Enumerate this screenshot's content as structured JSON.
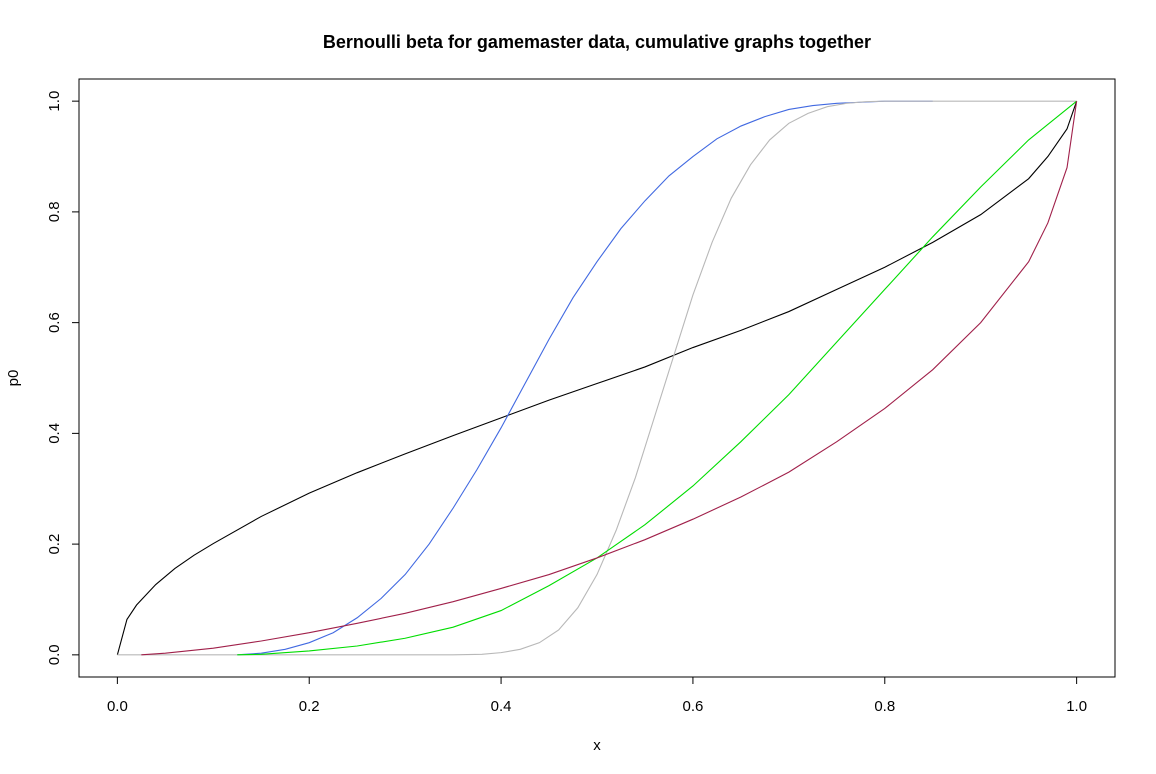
{
  "chart_data": {
    "type": "line",
    "title": "Bernoulli beta for gamemaster data, cumulative graphs together",
    "xlabel": "x",
    "ylabel": "p0",
    "xlim": [
      -0.04,
      1.04
    ],
    "ylim": [
      -0.04,
      1.04
    ],
    "x_ticks": [
      0.0,
      0.2,
      0.4,
      0.6,
      0.8,
      1.0
    ],
    "x_tick_labels": [
      "0.0",
      "0.2",
      "0.4",
      "0.6",
      "0.8",
      "1.0"
    ],
    "y_ticks": [
      0.0,
      0.2,
      0.4,
      0.6,
      0.8,
      1.0
    ],
    "y_tick_labels": [
      "0.0",
      "0.2",
      "0.4",
      "0.6",
      "0.8",
      "1.0"
    ],
    "grid": false,
    "legend": "none",
    "series": [
      {
        "color": "#000000",
        "x": [
          0.0,
          0.01,
          0.02,
          0.04,
          0.06,
          0.08,
          0.1,
          0.15,
          0.2,
          0.25,
          0.3,
          0.35,
          0.4,
          0.45,
          0.5,
          0.55,
          0.6,
          0.65,
          0.7,
          0.75,
          0.8,
          0.85,
          0.9,
          0.95,
          0.97,
          0.99,
          1.0
        ],
        "y": [
          0.0,
          0.064,
          0.09,
          0.127,
          0.156,
          0.18,
          0.201,
          0.25,
          0.292,
          0.329,
          0.363,
          0.396,
          0.428,
          0.46,
          0.49,
          0.52,
          0.555,
          0.586,
          0.62,
          0.66,
          0.7,
          0.745,
          0.795,
          0.86,
          0.9,
          0.95,
          1.0
        ]
      },
      {
        "color": "#4169e1",
        "x": [
          0.125,
          0.15,
          0.175,
          0.2,
          0.225,
          0.25,
          0.275,
          0.3,
          0.325,
          0.35,
          0.375,
          0.4,
          0.425,
          0.45,
          0.475,
          0.5,
          0.525,
          0.55,
          0.575,
          0.6,
          0.625,
          0.65,
          0.675,
          0.7,
          0.725,
          0.75,
          0.775,
          0.8,
          0.85
        ],
        "y": [
          0.0,
          0.003,
          0.01,
          0.022,
          0.04,
          0.067,
          0.102,
          0.145,
          0.2,
          0.265,
          0.335,
          0.41,
          0.49,
          0.57,
          0.645,
          0.71,
          0.77,
          0.82,
          0.865,
          0.9,
          0.932,
          0.955,
          0.972,
          0.985,
          0.992,
          0.996,
          0.998,
          1.0,
          1.0
        ]
      },
      {
        "color": "#b8b8b8",
        "x": [
          0.0,
          0.1,
          0.2,
          0.3,
          0.35,
          0.38,
          0.4,
          0.42,
          0.44,
          0.46,
          0.48,
          0.5,
          0.52,
          0.54,
          0.56,
          0.58,
          0.6,
          0.62,
          0.64,
          0.66,
          0.68,
          0.7,
          0.72,
          0.74,
          0.76,
          0.78,
          0.8,
          0.9,
          1.0
        ],
        "y": [
          0.0,
          0.0,
          0.0,
          0.0,
          0.0,
          0.001,
          0.004,
          0.01,
          0.022,
          0.045,
          0.085,
          0.145,
          0.225,
          0.32,
          0.43,
          0.54,
          0.65,
          0.745,
          0.825,
          0.885,
          0.93,
          0.96,
          0.978,
          0.99,
          0.996,
          0.999,
          1.0,
          1.0,
          1.0
        ]
      },
      {
        "color": "#00dd00",
        "x": [
          0.125,
          0.15,
          0.2,
          0.25,
          0.3,
          0.35,
          0.4,
          0.45,
          0.5,
          0.55,
          0.6,
          0.65,
          0.7,
          0.75,
          0.8,
          0.85,
          0.9,
          0.95,
          1.0
        ],
        "y": [
          0.0,
          0.001,
          0.007,
          0.016,
          0.03,
          0.05,
          0.08,
          0.125,
          0.175,
          0.235,
          0.305,
          0.385,
          0.47,
          0.565,
          0.66,
          0.755,
          0.845,
          0.93,
          1.0
        ]
      },
      {
        "color": "#a0204a",
        "x": [
          0.025,
          0.05,
          0.1,
          0.15,
          0.2,
          0.25,
          0.3,
          0.35,
          0.4,
          0.45,
          0.5,
          0.55,
          0.6,
          0.65,
          0.7,
          0.75,
          0.8,
          0.85,
          0.9,
          0.95,
          0.97,
          0.99,
          1.0
        ],
        "y": [
          0.0,
          0.003,
          0.012,
          0.025,
          0.04,
          0.057,
          0.075,
          0.096,
          0.12,
          0.145,
          0.175,
          0.208,
          0.245,
          0.285,
          0.33,
          0.385,
          0.445,
          0.515,
          0.6,
          0.71,
          0.78,
          0.88,
          1.0
        ]
      }
    ]
  }
}
